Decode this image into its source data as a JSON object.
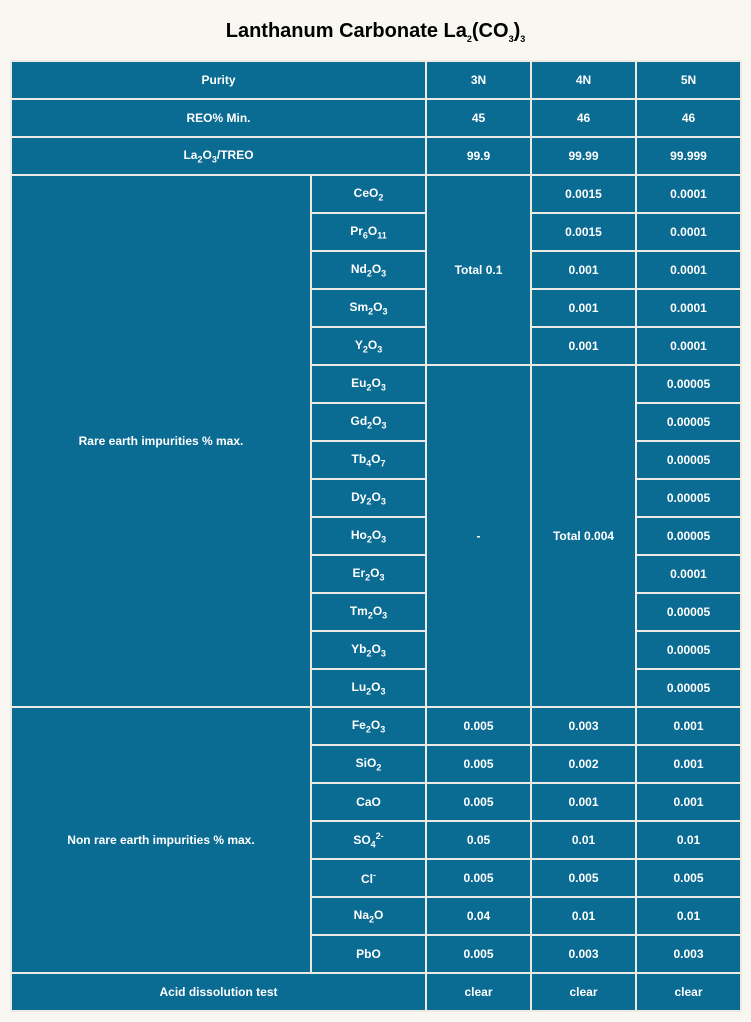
{
  "title_main": "Lanthanum Carbonate  La",
  "title_sub1": "2",
  "title_mid": "(CO",
  "title_sub2": "3",
  "title_end": ")",
  "title_sub3": "3",
  "headers": {
    "purity": "Purity",
    "c3n": "3N",
    "c4n": "4N",
    "c5n": "5N"
  },
  "reo_label": "REO% Min.",
  "reo": {
    "c3n": "45",
    "c4n": "46",
    "c5n": "46"
  },
  "treo": {
    "c3n": "99.9",
    "c4n": "99.99",
    "c5n": "99.999"
  },
  "rare_label": "Rare earth impurities % max.",
  "group1_3n": "Total 0.1",
  "group2_3n": "-",
  "group2_4n": "Total 0.004",
  "g1r0_4n": "0.0015",
  "g1r0_5n": "0.0001",
  "g1r1_4n": "0.0015",
  "g1r1_5n": "0.0001",
  "g1r2_4n": "0.001",
  "g1r2_5n": "0.0001",
  "g1r3_4n": "0.001",
  "g1r3_5n": "0.0001",
  "g1r4_4n": "0.001",
  "g1r4_5n": "0.0001",
  "g2r0_5n": "0.00005",
  "g2r1_5n": "0.00005",
  "g2r2_5n": "0.00005",
  "g2r3_5n": "0.00005",
  "g2r4_5n": "0.00005",
  "g2r5_5n": "0.0001",
  "g2r6_5n": "0.00005",
  "g2r7_5n": "0.00005",
  "g2r8_5n": "0.00005",
  "nonrare_label": "Non rare earth impurities % max.",
  "nr0_3n": "0.005",
  "nr0_4n": "0.003",
  "nr0_5n": "0.001",
  "nr1_3n": "0.005",
  "nr1_4n": "0.002",
  "nr1_5n": "0.001",
  "nr2_3n": "0.005",
  "nr2_4n": "0.001",
  "nr2_5n": "0.001",
  "nr3_3n": "0.05",
  "nr3_4n": "0.01",
  "nr3_5n": "0.01",
  "nr4_3n": "0.005",
  "nr4_4n": "0.005",
  "nr4_5n": "0.005",
  "nr5_3n": "0.04",
  "nr5_4n": "0.01",
  "nr5_5n": "0.01",
  "nr6_3n": "0.005",
  "nr6_4n": "0.003",
  "nr6_5n": "0.003",
  "acid_label": "Acid dissolution test",
  "acid_3n": "clear",
  "acid_4n": "clear",
  "acid_5n": "clear",
  "CaO": "CaO",
  "PbO": "PbO"
}
